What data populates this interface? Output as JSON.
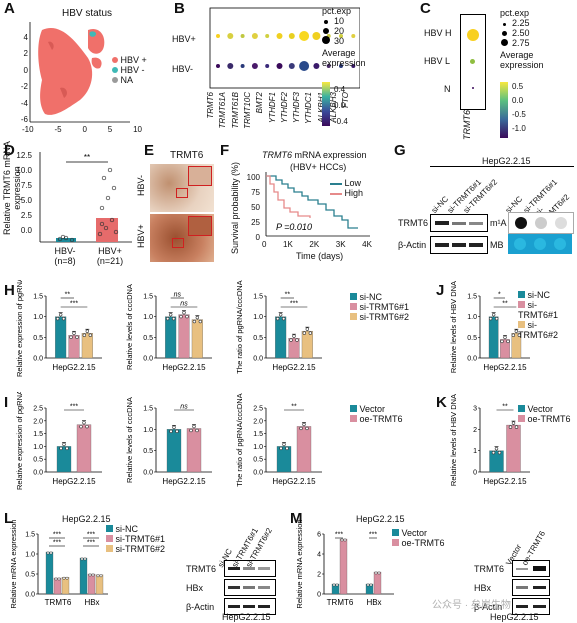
{
  "panels": {
    "A": {
      "label": "A",
      "title": "HBV status",
      "legend": [
        {
          "label": "HBV +",
          "color": "#f0706a"
        },
        {
          "label": "HBV -",
          "color": "#3fb9b6"
        },
        {
          "label": "NA",
          "color": "#9a9a9a"
        }
      ],
      "y_ticks": [
        "4",
        "2",
        "0",
        "-2",
        "-4",
        "-6"
      ],
      "x_ticks": [
        "-10",
        "-5",
        "0",
        "5",
        "10"
      ]
    },
    "B": {
      "label": "B",
      "rows": [
        "HBV+",
        "HBV-"
      ],
      "genes": [
        "TRMT6",
        "TRMT61A",
        "TRMT61B",
        "TRMT10C",
        "BMT2",
        "YTHDF1",
        "YTHDF2",
        "YTHDF3",
        "YTHDC1",
        "ALKBH1",
        "ALKBH3",
        "FTO"
      ],
      "size_title": "pct.exp",
      "size_legend": [
        "10",
        "20",
        "30"
      ],
      "color_title": "Average expression",
      "color_ticks": [
        "0.4",
        "0.0",
        "-0.4"
      ]
    },
    "C": {
      "label": "C",
      "rows": [
        "HBV H",
        "HBV L",
        "N"
      ],
      "gene": "TRMT6",
      "size_title": "pct.exp",
      "size_legend": [
        "2.25",
        "2.50",
        "2.75"
      ],
      "color_title": "Average expression",
      "color_ticks": [
        "0.5",
        "0.0",
        "-0.5",
        "-1.0"
      ]
    },
    "D": {
      "label": "D",
      "ylabel": "Relative TRMT6 mRNA expression",
      "y_ticks": [
        "0.0",
        "2.5",
        "5.0",
        "7.5",
        "10.0",
        "12.5"
      ],
      "groups": [
        "HBV-",
        "HBV+"
      ],
      "group_n": [
        "(n=8)",
        "(n=21)"
      ],
      "sig": "**"
    },
    "E": {
      "label": "E",
      "title": "TRMT6",
      "rows": [
        "HBV-",
        "HBV+"
      ]
    },
    "F": {
      "label": "F",
      "title_gene": "TRMT6",
      "title_rest": " mRNA expression",
      "subtitle": "(HBV+ HCCs)",
      "ylabel": "Survival probability (%)",
      "xlabel": "Time (days)",
      "y_ticks": [
        "0",
        "25",
        "50",
        "75",
        "100"
      ],
      "x_ticks": [
        "0",
        "1K",
        "2K",
        "3K",
        "4K"
      ],
      "legend": [
        {
          "label": "Low",
          "color": "#2a7f8f"
        },
        {
          "label": "High",
          "color": "#e68a8a"
        }
      ],
      "pvalue": "P =0.010"
    },
    "G": {
      "label": "G",
      "title": "HepG2.2.15",
      "lanes": [
        "si-NC",
        "si-TRMT6#1",
        "si-TRMT6#2"
      ],
      "rows": [
        "TRMT6",
        "β-Actin"
      ],
      "dot_rows": [
        "m¹A",
        "MB"
      ]
    },
    "H": {
      "label": "H",
      "cell": "HepG2.2.15",
      "charts": [
        {
          "ylabel": "Relative expression of pgRNA",
          "y_ticks": [
            "0.0",
            "0.5",
            "1.0",
            "1.5"
          ],
          "sig": [
            "**",
            "***"
          ]
        },
        {
          "ylabel": "Relative levels of cccDNA",
          "y_ticks": [
            "0.0",
            "0.5",
            "1.0",
            "1.5"
          ],
          "sig": [
            "ns",
            "ns"
          ]
        },
        {
          "ylabel": "The ratio of pgRNA/cccDNA",
          "y_ticks": [
            "0.0",
            "0.5",
            "1.0",
            "1.5"
          ],
          "sig": [
            "**",
            "***"
          ]
        }
      ],
      "legend": [
        {
          "label": "si-NC",
          "color": "#1a8a9a"
        },
        {
          "label": "si-TRMT6#1",
          "color": "#d98fa0"
        },
        {
          "label": "si-TRMT6#2",
          "color": "#e8c080"
        }
      ]
    },
    "I": {
      "label": "I",
      "cell": "HepG2.2.15",
      "charts": [
        {
          "ylabel": "Relative expression of pgRNA",
          "y_ticks": [
            "0.0",
            "0.5",
            "1.0",
            "1.5",
            "2.0",
            "2.5"
          ],
          "sig": "***"
        },
        {
          "ylabel": "Relative levels of cccDNA",
          "y_ticks": [
            "0.0",
            "0.5",
            "1.0",
            "1.5"
          ],
          "sig": "ns"
        },
        {
          "ylabel": "The ratio of pgRNA/cccDNA",
          "y_ticks": [
            "0.0",
            "0.5",
            "1.0",
            "1.5",
            "2.0",
            "2.5"
          ],
          "sig": "**"
        }
      ],
      "legend": [
        {
          "label": "Vector",
          "color": "#1a8a9a"
        },
        {
          "label": "oe-TRMT6",
          "color": "#d98fa0"
        }
      ]
    },
    "J": {
      "label": "J",
      "ylabel": "Relative levels of HBV DNA",
      "y_ticks": [
        "0.0",
        "0.5",
        "1.0",
        "1.5"
      ],
      "sig": [
        "*",
        "**"
      ],
      "cell": "HepG2.2.15"
    },
    "K": {
      "label": "K",
      "ylabel": "Relative levels of HBV DNA",
      "y_ticks": [
        "0",
        "1",
        "2",
        "3"
      ],
      "sig": "**",
      "cell": "HepG2.2.15",
      "legend": [
        {
          "label": "Vector",
          "color": "#1a8a9a"
        },
        {
          "label": "oe-TRMT6",
          "color": "#d98fa0"
        }
      ]
    },
    "L": {
      "label": "L",
      "title": "HepG2.2.15",
      "ylabel": "Relative mRNA expression",
      "y_ticks": [
        "0.0",
        "0.5",
        "1.0",
        "1.5"
      ],
      "groups": [
        "TRMT6",
        "HBx"
      ],
      "sig": [
        "***",
        "***",
        "***",
        "***"
      ],
      "blot_lanes": [
        "si-NC",
        "si-TRMT6#1",
        "si-TRMT6#2"
      ],
      "blot_rows": [
        "TRMT6",
        "HBx",
        "β-Actin"
      ],
      "blot_cell": "HepG2.2.15"
    },
    "M": {
      "label": "M",
      "title": "HepG2.2.15",
      "ylabel": "Relative mRNA expression",
      "y_ticks": [
        "0",
        "2",
        "4",
        "6"
      ],
      "groups": [
        "TRMT6",
        "HBx"
      ],
      "sig": [
        "***",
        "***"
      ],
      "blot_lanes": [
        "Vector",
        "oe-TRMT6"
      ],
      "blot_rows": [
        "TRMT6",
        "HBx",
        "β-Actin"
      ],
      "blot_cell": "HepG2.2.15"
    }
  },
  "watermark": "公众号 · 矣岸生物",
  "colors": {
    "teal": "#1a8a9a",
    "pink": "#d98fa0",
    "tan": "#e8c080",
    "hbvpos": "#f0706a",
    "hbvneg": "#3fb9b6"
  },
  "chart_data": [
    {
      "type": "bar",
      "panel": "D",
      "categories": [
        "HBV-",
        "HBV+"
      ],
      "values": [
        0.6,
        3.2
      ],
      "ylim": [
        0,
        12.5
      ]
    },
    {
      "type": "line",
      "panel": "F",
      "series": [
        {
          "name": "Low"
        },
        {
          "name": "High"
        }
      ],
      "ylim": [
        0,
        100
      ],
      "xlim": [
        0,
        4000
      ]
    },
    {
      "type": "bar",
      "panel": "H-pgRNA",
      "categories": [
        "si-NC",
        "si-TRMT6#1",
        "si-TRMT6#2"
      ],
      "values": [
        1.0,
        0.55,
        0.6
      ],
      "ylim": [
        0,
        1.5
      ]
    },
    {
      "type": "bar",
      "panel": "H-cccDNA",
      "categories": [
        "si-NC",
        "si-TRMT6#1",
        "si-TRMT6#2"
      ],
      "values": [
        1.0,
        1.05,
        0.93
      ],
      "ylim": [
        0,
        1.5
      ]
    },
    {
      "type": "bar",
      "panel": "H-ratio",
      "categories": [
        "si-NC",
        "si-TRMT6#1",
        "si-TRMT6#2"
      ],
      "values": [
        1.0,
        0.48,
        0.65
      ],
      "ylim": [
        0,
        1.5
      ]
    },
    {
      "type": "bar",
      "panel": "J",
      "categories": [
        "si-NC",
        "si-TRMT6#1",
        "si-TRMT6#2"
      ],
      "values": [
        1.0,
        0.45,
        0.6
      ],
      "ylim": [
        0,
        1.5
      ]
    },
    {
      "type": "bar",
      "panel": "I-pgRNA",
      "categories": [
        "Vector",
        "oe-TRMT6"
      ],
      "values": [
        1.0,
        1.85
      ],
      "ylim": [
        0,
        2.5
      ]
    },
    {
      "type": "bar",
      "panel": "I-cccDNA",
      "categories": [
        "Vector",
        "oe-TRMT6"
      ],
      "values": [
        1.0,
        1.02
      ],
      "ylim": [
        0,
        1.5
      ]
    },
    {
      "type": "bar",
      "panel": "I-ratio",
      "categories": [
        "Vector",
        "oe-TRMT6"
      ],
      "values": [
        1.0,
        1.78
      ],
      "ylim": [
        0,
        2.5
      ]
    },
    {
      "type": "bar",
      "panel": "K",
      "categories": [
        "Vector",
        "oe-TRMT6"
      ],
      "values": [
        1.0,
        2.2
      ],
      "ylim": [
        0,
        3
      ]
    },
    {
      "type": "bar",
      "panel": "L",
      "categories": [
        "TRMT6",
        "HBx"
      ],
      "series": [
        {
          "name": "si-NC",
          "values": [
            1.05,
            0.9
          ]
        },
        {
          "name": "si-TRMT6#1",
          "values": [
            0.4,
            0.5
          ]
        },
        {
          "name": "si-TRMT6#2",
          "values": [
            0.42,
            0.48
          ]
        }
      ],
      "ylim": [
        0,
        1.5
      ]
    },
    {
      "type": "bar",
      "panel": "M",
      "categories": [
        "TRMT6",
        "HBx"
      ],
      "series": [
        {
          "name": "Vector",
          "values": [
            1.0,
            1.0
          ]
        },
        {
          "name": "oe-TRMT6",
          "values": [
            5.5,
            2.2
          ]
        }
      ],
      "ylim": [
        0,
        6
      ]
    }
  ]
}
